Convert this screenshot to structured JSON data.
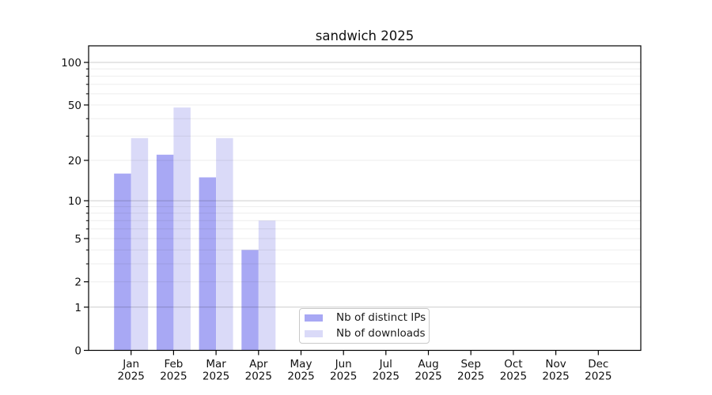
{
  "chart_data": {
    "type": "bar",
    "title": "sandwich 2025",
    "categories": [
      "Jan",
      "Feb",
      "Mar",
      "Apr",
      "May",
      "Jun",
      "Jul",
      "Aug",
      "Sep",
      "Oct",
      "Nov",
      "Dec"
    ],
    "x_tick_year": "2025",
    "series": [
      {
        "name": "Nb of distinct IPs",
        "color": "#a8a8f4",
        "values": [
          16,
          22,
          15,
          4,
          0,
          0,
          0,
          0,
          0,
          0,
          0,
          0
        ]
      },
      {
        "name": "Nb of downloads",
        "color": "#dadaf8",
        "values": [
          29,
          48,
          29,
          7,
          0,
          0,
          0,
          0,
          0,
          0,
          0,
          0
        ]
      }
    ],
    "y_scale": "log1p",
    "ylim": [
      0,
      130.7
    ],
    "y_tick_values": [
      100,
      50,
      20,
      10,
      5,
      2,
      1,
      0
    ],
    "y_tick_labels": [
      "100",
      "50",
      "20",
      "10",
      "5",
      "2",
      "1",
      "0"
    ],
    "grid_line_values": [
      1,
      2,
      3,
      4,
      5,
      6,
      7,
      8,
      9,
      10,
      20,
      30,
      40,
      50,
      60,
      70,
      80,
      90,
      100
    ],
    "major_grid_values": [
      1,
      10,
      100
    ],
    "grid": true,
    "legend_position": "lower center",
    "colors": {
      "grid_minor": "rgba(0,0,0,0.07)",
      "grid_major": "rgba(0,0,0,0.20)",
      "axis": "#000000",
      "text": "#111111"
    }
  }
}
